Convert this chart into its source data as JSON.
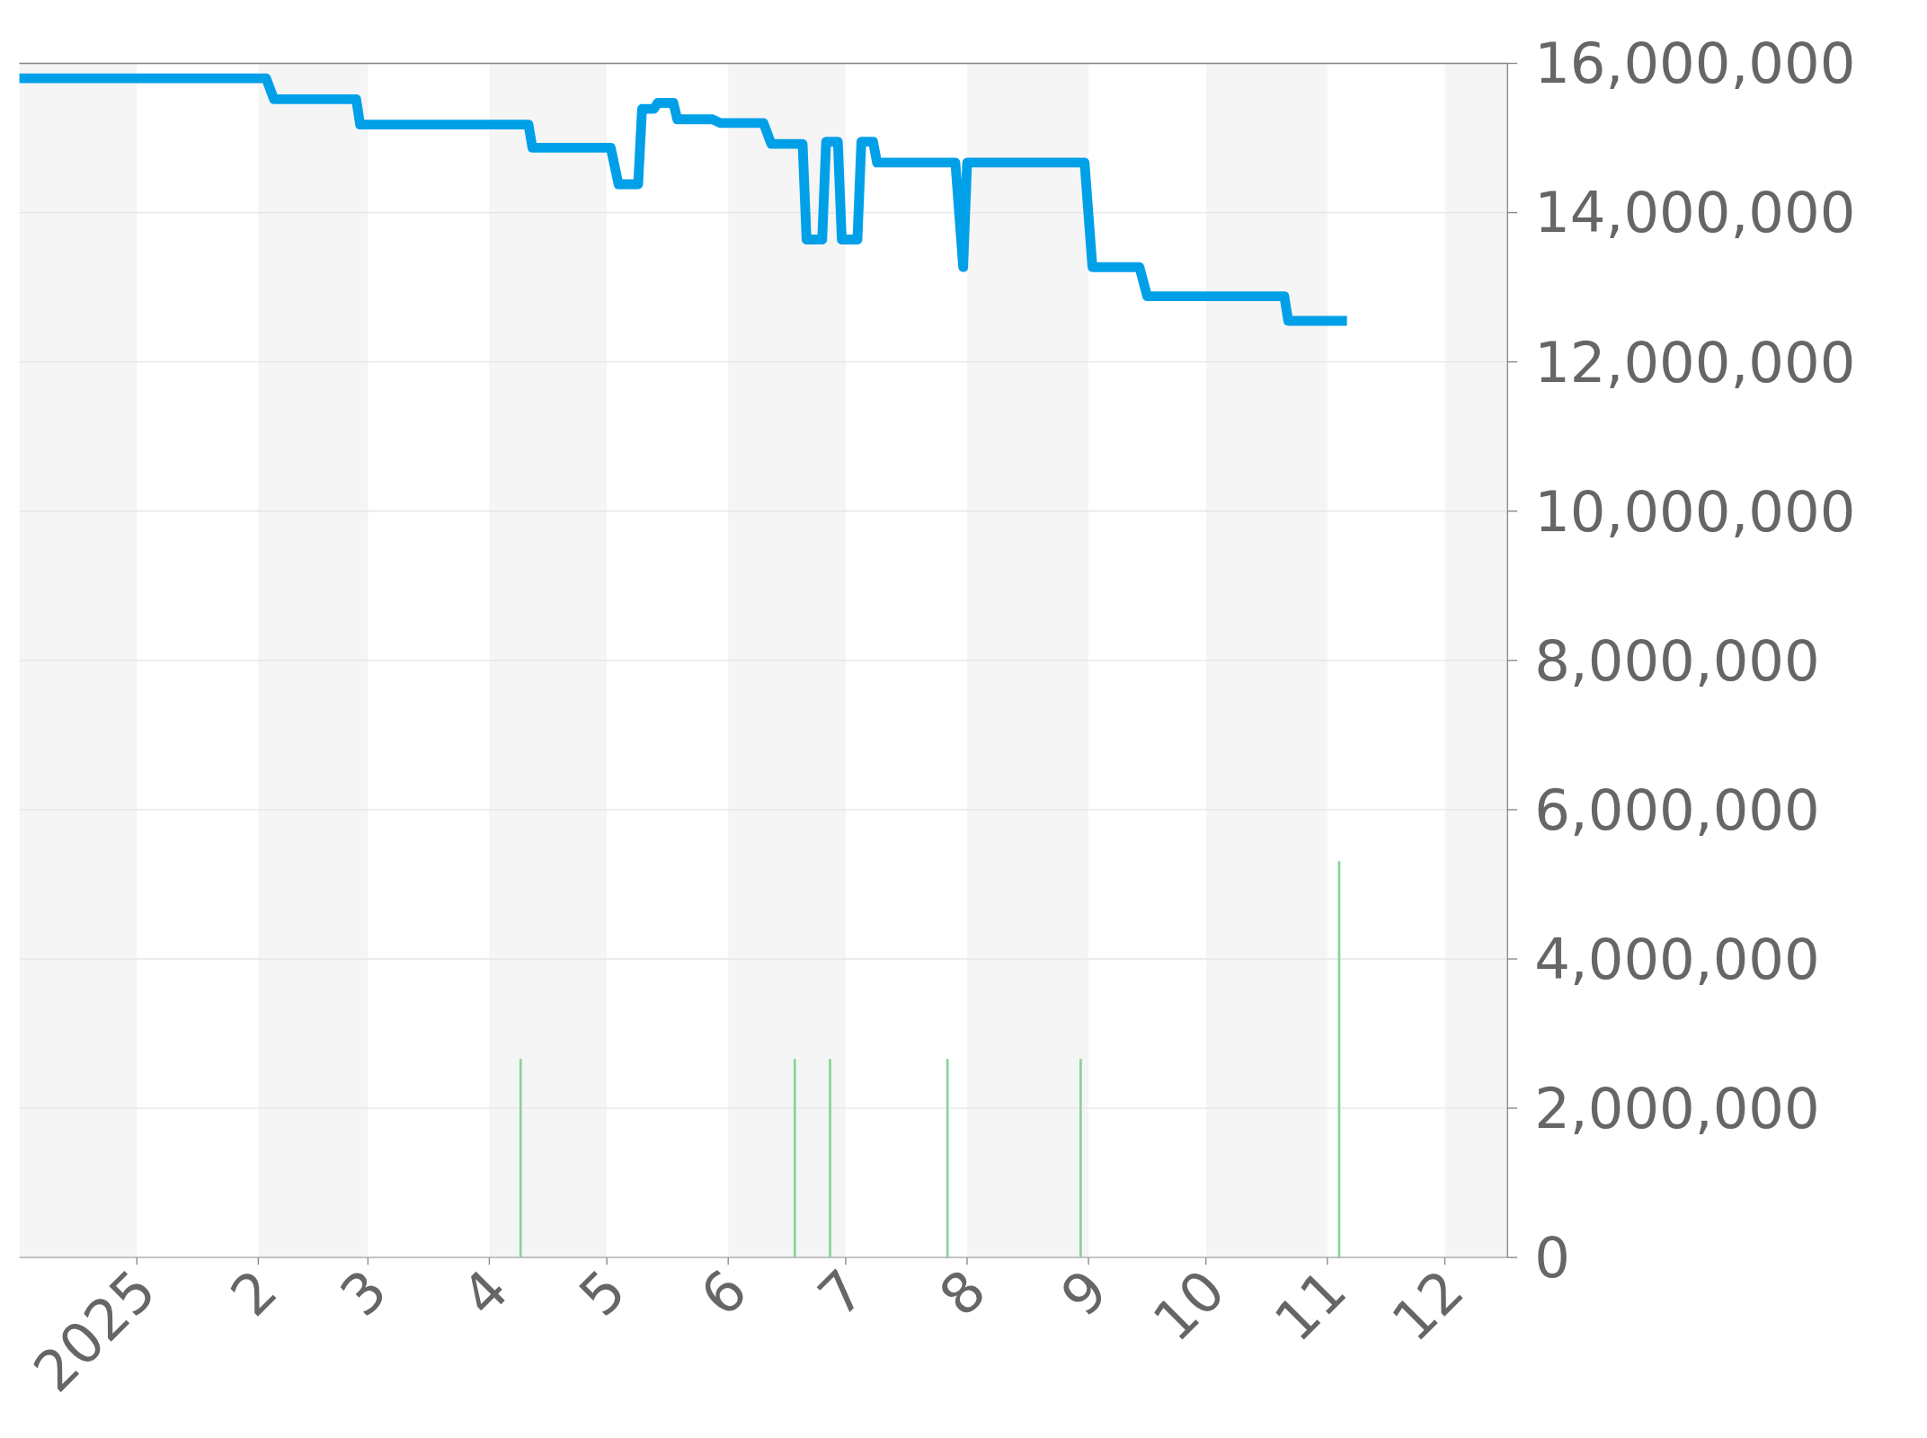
{
  "chart_data": {
    "type": "line",
    "xlim": [
      "2024-12-02",
      "2025-12-17"
    ],
    "ylim": [
      0,
      16000000
    ],
    "yticks": [
      {
        "value": 0,
        "label": "0"
      },
      {
        "value": 2000000,
        "label": "2,000,000"
      },
      {
        "value": 4000000,
        "label": "4,000,000"
      },
      {
        "value": 6000000,
        "label": "6,000,000"
      },
      {
        "value": 8000000,
        "label": "8,000,000"
      },
      {
        "value": 10000000,
        "label": "10,000,000"
      },
      {
        "value": 12000000,
        "label": "12,000,000"
      },
      {
        "value": 14000000,
        "label": "14,000,000"
      },
      {
        "value": 16000000,
        "label": "16,000,000"
      }
    ],
    "xticks": [
      {
        "value": "2025-01-01",
        "label": "2025"
      },
      {
        "value": "2025-02-01",
        "label": "2"
      },
      {
        "value": "2025-03-01",
        "label": "3"
      },
      {
        "value": "2025-04-01",
        "label": "4"
      },
      {
        "value": "2025-05-01",
        "label": "5"
      },
      {
        "value": "2025-06-01",
        "label": "6"
      },
      {
        "value": "2025-07-01",
        "label": "7"
      },
      {
        "value": "2025-08-01",
        "label": "8"
      },
      {
        "value": "2025-09-01",
        "label": "9"
      },
      {
        "value": "2025-10-01",
        "label": "10"
      },
      {
        "value": "2025-11-01",
        "label": "11"
      },
      {
        "value": "2025-12-01",
        "label": "12"
      }
    ],
    "grid": "y",
    "marker": "none",
    "line_style": "solid",
    "bands": [
      {
        "axis": "x",
        "from": "2024-12-02",
        "to": "2025-01-01",
        "color": "#f5f5f5"
      },
      {
        "axis": "x",
        "from": "2025-02-01",
        "to": "2025-03-01",
        "color": "#f5f5f5"
      },
      {
        "axis": "x",
        "from": "2025-04-01",
        "to": "2025-05-01",
        "color": "#f5f5f5"
      },
      {
        "axis": "x",
        "from": "2025-06-01",
        "to": "2025-07-01",
        "color": "#f5f5f5"
      },
      {
        "axis": "x",
        "from": "2025-08-01",
        "to": "2025-09-01",
        "color": "#f5f5f5"
      },
      {
        "axis": "x",
        "from": "2025-10-01",
        "to": "2025-11-01",
        "color": "#f5f5f5"
      },
      {
        "axis": "x",
        "from": "2025-12-01",
        "to": "2025-12-17",
        "color": "#f5f5f5"
      }
    ],
    "series": [
      {
        "type": "bar",
        "color": "#88d498",
        "x": [
          "2025-04-09",
          "2025-06-18",
          "2025-06-27",
          "2025-07-27",
          "2025-08-30",
          "2025-11-04"
        ],
        "values": [
          2660000,
          2660000,
          2660000,
          2660000,
          2660000,
          5310000
        ]
      },
      {
        "color": "#00a0e9",
        "x": [
          "2024-12-02",
          "2025-02-03",
          "2025-02-05",
          "2025-02-26",
          "2025-02-27",
          "2025-04-11",
          "2025-04-12",
          "2025-05-02",
          "2025-05-04",
          "2025-05-09",
          "2025-05-10",
          "2025-05-13",
          "2025-05-14",
          "2025-05-18",
          "2025-05-19",
          "2025-05-28",
          "2025-05-30",
          "2025-06-10",
          "2025-06-12",
          "2025-06-20",
          "2025-06-21",
          "2025-06-25",
          "2025-06-26",
          "2025-06-29",
          "2025-06-30",
          "2025-07-04",
          "2025-07-05",
          "2025-07-08",
          "2025-07-09",
          "2025-07-29",
          "2025-07-31",
          "2025-08-01",
          "2025-08-31",
          "2025-09-02",
          "2025-09-14",
          "2025-09-16",
          "2025-10-21",
          "2025-10-22",
          "2025-11-06"
        ],
        "values": [
          15800000,
          15800000,
          15520000,
          15520000,
          15180000,
          15180000,
          14870000,
          14870000,
          14380000,
          14380000,
          15390000,
          15390000,
          15470000,
          15470000,
          15250000,
          15250000,
          15200000,
          15200000,
          14920000,
          14920000,
          13640000,
          13640000,
          14950000,
          14950000,
          13640000,
          13640000,
          14950000,
          14950000,
          14670000,
          14670000,
          13270000,
          14670000,
          14670000,
          13270000,
          13270000,
          12880000,
          12880000,
          12550000,
          12550000
        ]
      }
    ]
  }
}
